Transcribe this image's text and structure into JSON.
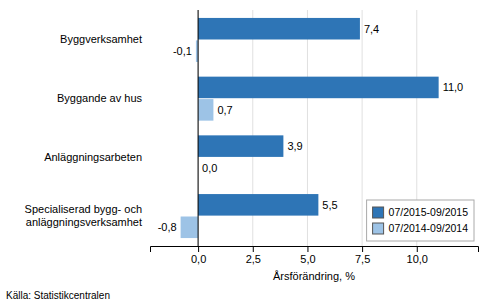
{
  "chart_data": {
    "type": "bar",
    "orientation": "horizontal",
    "categories": [
      "Byggverksamhet",
      "Byggande av hus",
      "Anläggningsarbeten",
      "Specialiserad bygg- och\nanläggningsverksamhet"
    ],
    "series": [
      {
        "name": "07/2015-09/2015",
        "color": "#2e75b6",
        "values": [
          7.4,
          11.0,
          3.9,
          5.5
        ],
        "value_labels": [
          "7,4",
          "11,0",
          "3,9",
          "5,5"
        ]
      },
      {
        "name": "07/2014-09/2014",
        "color": "#9dc3e6",
        "values": [
          -0.1,
          0.7,
          0.0,
          -0.8
        ],
        "value_labels": [
          "-0,1",
          "0,7",
          "0,0",
          "-0,8"
        ]
      }
    ],
    "x_label": "Årsförändring, %",
    "xlim": [
      -2.2,
      12.8
    ],
    "xticks": [
      {
        "value": 0.0,
        "label": "0,0"
      },
      {
        "value": 2.5,
        "label": "2,5"
      },
      {
        "value": 5.0,
        "label": "5,0"
      },
      {
        "value": 7.5,
        "label": "7,5"
      },
      {
        "value": 10.0,
        "label": "10,0"
      }
    ],
    "grid": true,
    "legend": "lower right",
    "data_labels": true,
    "annotations": [
      "Källa: Statistikcentralen"
    ]
  }
}
